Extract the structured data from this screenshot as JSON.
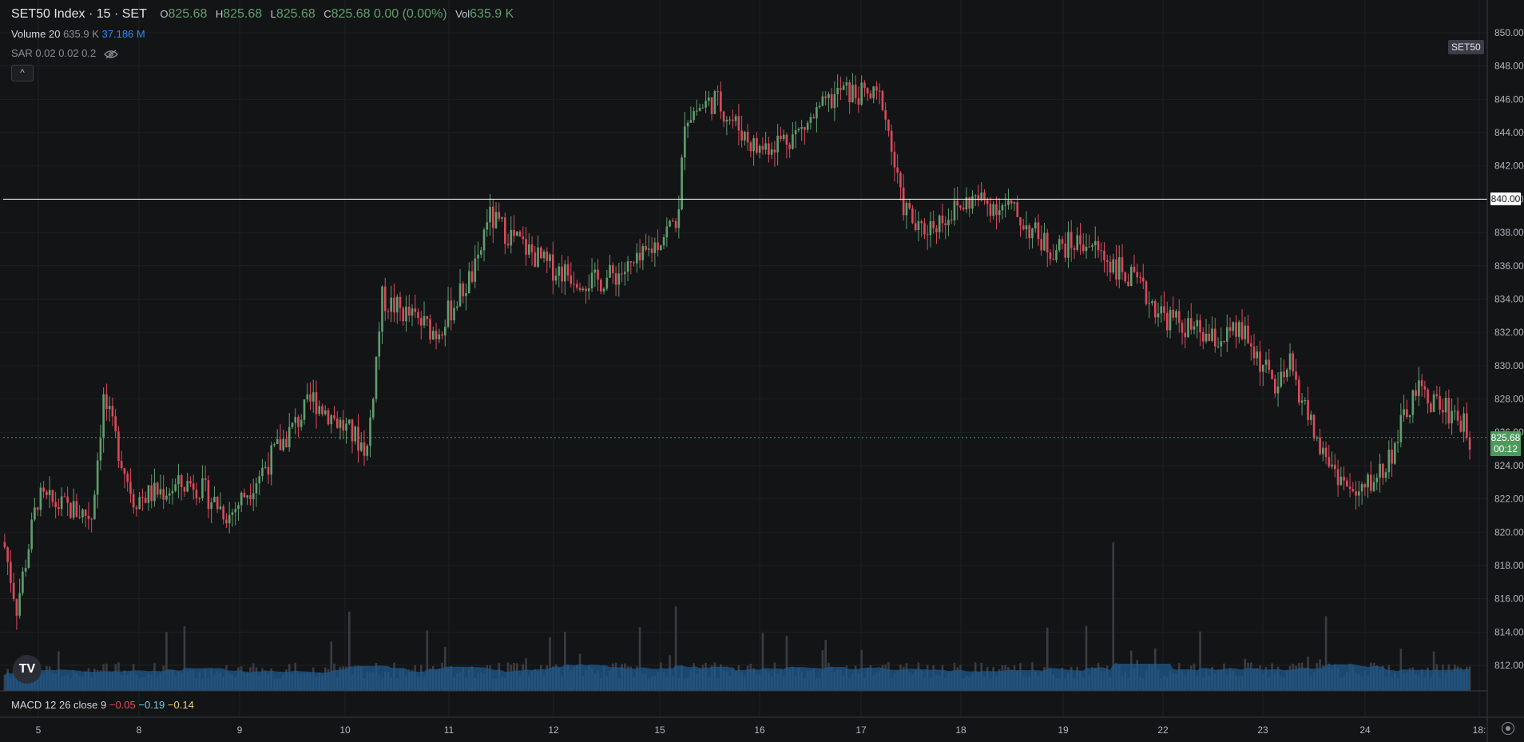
{
  "legend": {
    "symbol": "SET50 Index · 15 · SET",
    "o_label": "O",
    "o_value": "825.68",
    "h_label": "H",
    "h_value": "825.68",
    "l_label": "L",
    "l_value": "825.68",
    "c_label": "C",
    "c_value": "825.68",
    "change": "0.00 (0.00%)",
    "vol_label": "Vol",
    "vol_value": "635.9 K",
    "volume_name": "Volume 20",
    "volume_value": "635.9 K",
    "volume_ma": "37.186 M",
    "sar_name": "SAR 0.02 0.02 0.2",
    "macd_name": "MACD 12 26 close 9",
    "macd_value": "−0.05",
    "macd_signal": "−0.19",
    "macd_hist": "−0.14",
    "collapse_glyph": "^",
    "logo_text": "TV"
  },
  "symbol_tag": "SET50",
  "price_badges": {
    "crosshair": "840.00",
    "last_price": "825.68",
    "countdown": "00:12"
  },
  "colors": {
    "background": "#131416",
    "up": "#5f9e6e",
    "down": "#d94a5a",
    "volume": "#3a3c42",
    "volume_ma": "#1e5a8e",
    "grid": "#1d1f23",
    "crosshair": "#ffffff",
    "last_price_line": "#4d9a5c"
  },
  "chart_data": {
    "type": "candlestick",
    "y_range": [
      810,
      851
    ],
    "y_ticks": [
      "812.00",
      "814.00",
      "816.00",
      "818.00",
      "820.00",
      "822.00",
      "824.00",
      "826.00",
      "828.00",
      "830.00",
      "832.00",
      "834.00",
      "836.00",
      "838.00",
      "840.00",
      "842.00",
      "844.00",
      "846.00",
      "848.00",
      "850.00"
    ],
    "x_labels": [
      "5",
      "8",
      "9",
      "10",
      "11",
      "12",
      "15",
      "16",
      "17",
      "18",
      "19",
      "22",
      "23",
      "24",
      "18:"
    ],
    "crosshair_price": 840.0,
    "last_price": 825.68,
    "segments": [
      {
        "from": 820,
        "to": 815.5,
        "n": 5
      },
      {
        "from": 815.5,
        "to": 822,
        "n": 7
      },
      {
        "from": 822,
        "to": 821,
        "n": 18
      },
      {
        "from": 821,
        "to": 828,
        "n": 4
      },
      {
        "from": 828,
        "to": 822,
        "n": 10
      },
      {
        "from": 822,
        "to": 823,
        "n": 20
      },
      {
        "from": 823,
        "to": 821,
        "n": 12
      },
      {
        "from": 821,
        "to": 825,
        "n": 16
      },
      {
        "from": 825,
        "to": 828,
        "n": 12
      },
      {
        "from": 828,
        "to": 825,
        "n": 18
      },
      {
        "from": 825,
        "to": 834,
        "n": 5
      },
      {
        "from": 834,
        "to": 832,
        "n": 18
      },
      {
        "from": 832,
        "to": 836,
        "n": 14
      },
      {
        "from": 836,
        "to": 839,
        "n": 3
      },
      {
        "from": 839,
        "to": 836,
        "n": 20
      },
      {
        "from": 836,
        "to": 835,
        "n": 16
      },
      {
        "from": 835,
        "to": 836,
        "n": 14
      },
      {
        "from": 836,
        "to": 839,
        "n": 14
      },
      {
        "from": 839,
        "to": 845,
        "n": 2
      },
      {
        "from": 845,
        "to": 846,
        "n": 10
      },
      {
        "from": 846,
        "to": 843,
        "n": 14
      },
      {
        "from": 843,
        "to": 844,
        "n": 14
      },
      {
        "from": 844,
        "to": 846.5,
        "n": 14
      },
      {
        "from": 846.5,
        "to": 846,
        "n": 14
      },
      {
        "from": 846,
        "to": 840,
        "n": 6
      },
      {
        "from": 840,
        "to": 838,
        "n": 6
      },
      {
        "from": 838,
        "to": 840,
        "n": 18
      },
      {
        "from": 840,
        "to": 839.5,
        "n": 12
      },
      {
        "from": 839.5,
        "to": 837,
        "n": 14
      },
      {
        "from": 837,
        "to": 837.5,
        "n": 12
      },
      {
        "from": 837.5,
        "to": 835,
        "n": 16
      },
      {
        "from": 835,
        "to": 833,
        "n": 10
      },
      {
        "from": 833,
        "to": 831.5,
        "n": 16
      },
      {
        "from": 831.5,
        "to": 832,
        "n": 10
      },
      {
        "from": 832,
        "to": 828.5,
        "n": 12
      },
      {
        "from": 828.5,
        "to": 830,
        "n": 4
      },
      {
        "from": 830,
        "to": 825,
        "n": 10
      },
      {
        "from": 825,
        "to": 822,
        "n": 12
      },
      {
        "from": 822,
        "to": 824,
        "n": 10
      },
      {
        "from": 824,
        "to": 828.5,
        "n": 10
      },
      {
        "from": 828.5,
        "to": 827,
        "n": 14
      },
      {
        "from": 827,
        "to": 825.68,
        "n": 4
      }
    ]
  }
}
